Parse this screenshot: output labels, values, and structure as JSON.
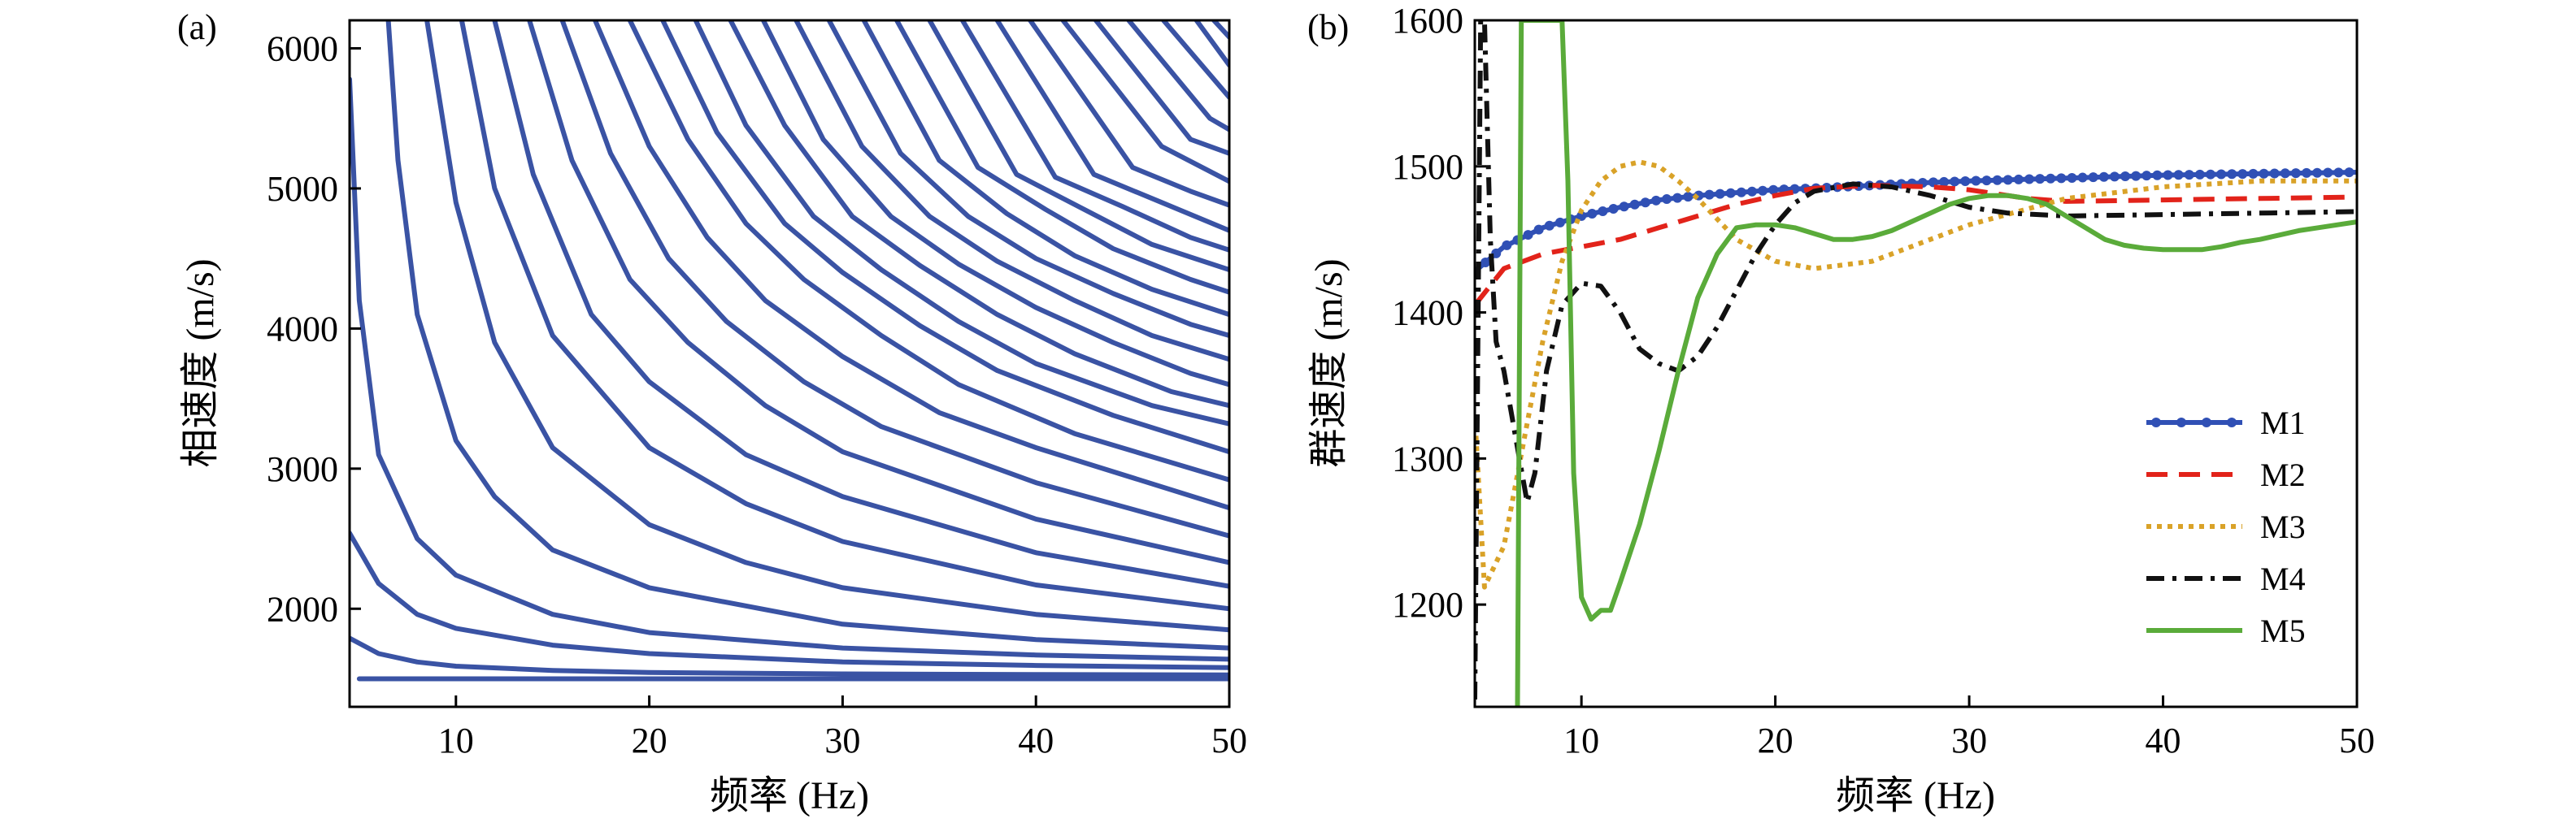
{
  "chart_data": [
    {
      "panel_label": "(a)",
      "type": "line",
      "xlabel": "频率 (Hz)",
      "ylabel": "相速度 (m/s)",
      "xlim": [
        4.5,
        50
      ],
      "ylim": [
        1300,
        6200
      ],
      "xticks": [
        10,
        20,
        30,
        40,
        50
      ],
      "yticks": [
        2000,
        3000,
        4000,
        5000,
        6000
      ],
      "line_color": "#3a53a4",
      "series_note_free": true,
      "series": [
        {
          "x": [
            4.5,
            6,
            8,
            10,
            15,
            20,
            30,
            40,
            50
          ],
          "y": [
            1790,
            1680,
            1620,
            1590,
            1560,
            1545,
            1535,
            1530,
            1528
          ]
        },
        {
          "x": [
            4.5,
            6,
            8,
            10,
            15,
            20,
            30,
            40,
            50
          ],
          "y": [
            2540,
            2180,
            1960,
            1860,
            1740,
            1680,
            1620,
            1595,
            1580
          ]
        },
        {
          "x": [
            4.5,
            5,
            6,
            8,
            10,
            15,
            20,
            30,
            40,
            50
          ],
          "y": [
            5780,
            4200,
            3100,
            2500,
            2240,
            1960,
            1830,
            1720,
            1670,
            1640
          ]
        },
        {
          "x": [
            6.5,
            7,
            8,
            10,
            12,
            15,
            20,
            30,
            40,
            50
          ],
          "y": [
            6200,
            5200,
            4100,
            3200,
            2800,
            2420,
            2150,
            1890,
            1780,
            1720
          ]
        },
        {
          "x": [
            8.5,
            10,
            12,
            15,
            20,
            25,
            30,
            40,
            50
          ],
          "y": [
            6200,
            4900,
            3900,
            3150,
            2600,
            2330,
            2150,
            1960,
            1850
          ]
        },
        {
          "x": [
            10.3,
            12,
            15,
            20,
            25,
            30,
            40,
            50
          ],
          "y": [
            6200,
            5000,
            3950,
            3150,
            2750,
            2480,
            2170,
            2000
          ]
        },
        {
          "x": [
            12,
            14,
            17,
            20,
            25,
            30,
            40,
            50
          ],
          "y": [
            6200,
            5100,
            4100,
            3620,
            3100,
            2800,
            2400,
            2160
          ]
        },
        {
          "x": [
            13.8,
            16,
            19,
            22,
            26,
            30,
            40,
            50
          ],
          "y": [
            6200,
            5200,
            4350,
            3900,
            3450,
            3120,
            2640,
            2330
          ]
        },
        {
          "x": [
            15.5,
            18,
            21,
            24,
            28,
            32,
            40,
            50
          ],
          "y": [
            6200,
            5250,
            4500,
            4050,
            3620,
            3300,
            2900,
            2520
          ]
        },
        {
          "x": [
            17.2,
            20,
            23,
            26,
            30,
            35,
            40,
            50
          ],
          "y": [
            6200,
            5300,
            4650,
            4200,
            3800,
            3400,
            3150,
            2720
          ]
        },
        {
          "x": [
            19,
            22,
            25,
            28,
            32,
            36,
            42,
            50
          ],
          "y": [
            6200,
            5350,
            4750,
            4350,
            3950,
            3600,
            3250,
            2920
          ]
        },
        {
          "x": [
            20.7,
            23.5,
            27,
            30,
            34,
            38,
            44,
            50
          ],
          "y": [
            6200,
            5400,
            4750,
            4400,
            4020,
            3700,
            3380,
            3120
          ]
        },
        {
          "x": [
            22.4,
            25,
            28.5,
            32,
            36,
            40,
            46,
            50
          ],
          "y": [
            6200,
            5450,
            4800,
            4420,
            4050,
            3750,
            3450,
            3320
          ]
        },
        {
          "x": [
            24.2,
            27,
            30.5,
            34,
            38,
            42,
            47,
            50
          ],
          "y": [
            6200,
            5450,
            4800,
            4450,
            4100,
            3820,
            3550,
            3450
          ]
        },
        {
          "x": [
            25.9,
            29,
            32.5,
            36,
            40,
            44,
            48,
            50
          ],
          "y": [
            6200,
            5350,
            4800,
            4460,
            4150,
            3900,
            3680,
            3600
          ]
        },
        {
          "x": [
            27.6,
            31,
            34.5,
            38,
            42,
            46,
            50
          ],
          "y": [
            6200,
            5300,
            4800,
            4480,
            4200,
            3950,
            3780
          ]
        },
        {
          "x": [
            29.3,
            33,
            36.5,
            40,
            44,
            48,
            50
          ],
          "y": [
            6200,
            5250,
            4800,
            4500,
            4250,
            4030,
            3950
          ]
        },
        {
          "x": [
            31.1,
            35,
            38.5,
            42,
            46,
            50
          ],
          "y": [
            6200,
            5200,
            4820,
            4520,
            4280,
            4100
          ]
        },
        {
          "x": [
            32.8,
            37,
            40.5,
            44,
            48,
            50
          ],
          "y": [
            6200,
            5150,
            4850,
            4570,
            4350,
            4260
          ]
        },
        {
          "x": [
            34.5,
            39,
            42.5,
            46,
            50
          ],
          "y": [
            6200,
            5100,
            4850,
            4600,
            4420
          ]
        },
        {
          "x": [
            36.2,
            41,
            44.5,
            48,
            50
          ],
          "y": [
            6200,
            5080,
            4870,
            4650,
            4560
          ]
        },
        {
          "x": [
            38,
            43,
            46.5,
            50
          ],
          "y": [
            6200,
            5100,
            4900,
            4700
          ]
        },
        {
          "x": [
            39.7,
            45,
            48,
            50
          ],
          "y": [
            6200,
            5150,
            4980,
            4880
          ]
        },
        {
          "x": [
            41.4,
            46.5,
            50
          ],
          "y": [
            6200,
            5300,
            5050
          ]
        },
        {
          "x": [
            43.1,
            48,
            50
          ],
          "y": [
            6200,
            5350,
            5250
          ]
        },
        {
          "x": [
            44.8,
            49,
            50
          ],
          "y": [
            6200,
            5500,
            5420
          ]
        },
        {
          "x": [
            46.6,
            50
          ],
          "y": [
            6200,
            5650
          ]
        },
        {
          "x": [
            48.3,
            50
          ],
          "y": [
            6200,
            5880
          ]
        },
        {
          "x": [
            49.2,
            50
          ],
          "y": [
            6200,
            6080
          ]
        },
        {
          "x": [
            5,
            10,
            20,
            30,
            40,
            50
          ],
          "y": [
            1500,
            1500,
            1500,
            1500,
            1500,
            1500
          ]
        }
      ]
    },
    {
      "panel_label": "(b)",
      "type": "line",
      "xlabel": "频率 (Hz)",
      "ylabel": "群速度 (m/s)",
      "xlim": [
        4.5,
        50
      ],
      "ylim": [
        1130,
        1600
      ],
      "xticks": [
        10,
        20,
        30,
        40,
        50
      ],
      "yticks": [
        1200,
        1300,
        1400,
        1500,
        1600
      ],
      "legend_position": "lower-right",
      "series": [
        {
          "name": "M1",
          "color": "#3050b5",
          "style": "solid-markers",
          "x": [
            4.5,
            6,
            8,
            10,
            12,
            14,
            16,
            18,
            20,
            22,
            25,
            28,
            30,
            35,
            40,
            45,
            50
          ],
          "y": [
            1428,
            1445,
            1458,
            1466,
            1472,
            1477,
            1480,
            1482,
            1484,
            1485,
            1487,
            1489,
            1490,
            1492,
            1494,
            1495,
            1496
          ]
        },
        {
          "name": "M2",
          "color": "#e2231a",
          "style": "dashed",
          "x": [
            4.5,
            6,
            8,
            10,
            12,
            14,
            16,
            18,
            20,
            22,
            25,
            28,
            30,
            33,
            35,
            40,
            45,
            50
          ],
          "y": [
            1405,
            1430,
            1440,
            1445,
            1450,
            1458,
            1466,
            1474,
            1480,
            1485,
            1487,
            1486,
            1484,
            1478,
            1476,
            1477,
            1478,
            1479
          ]
        },
        {
          "name": "M3",
          "color": "#d9a228",
          "style": "dotted",
          "x": [
            4.5,
            5,
            6,
            7,
            8,
            9,
            10,
            11,
            12,
            13,
            14,
            15,
            16,
            18,
            20,
            22,
            25,
            28,
            30,
            35,
            40,
            45,
            50
          ],
          "y": [
            1330,
            1212,
            1240,
            1310,
            1380,
            1435,
            1470,
            1490,
            1500,
            1503,
            1500,
            1490,
            1478,
            1450,
            1435,
            1430,
            1435,
            1450,
            1460,
            1478,
            1486,
            1490,
            1490
          ]
        },
        {
          "name": "M4",
          "color": "#111111",
          "style": "dashdot",
          "x": [
            4.5,
            4.8,
            5,
            5.3,
            5.6,
            6,
            6.4,
            6.8,
            7.2,
            7.6,
            8.2,
            9,
            10,
            11,
            12,
            13,
            14,
            15,
            16,
            17,
            18,
            19,
            20,
            21,
            22,
            24,
            26,
            28,
            30,
            32,
            35,
            40,
            45,
            50
          ],
          "y": [
            1135,
            1600,
            1600,
            1450,
            1380,
            1360,
            1330,
            1300,
            1270,
            1290,
            1360,
            1405,
            1420,
            1418,
            1400,
            1375,
            1365,
            1360,
            1370,
            1390,
            1415,
            1440,
            1460,
            1475,
            1483,
            1488,
            1486,
            1480,
            1472,
            1468,
            1466,
            1467,
            1468,
            1469
          ]
        },
        {
          "name": "M5",
          "color": "#5aab3a",
          "style": "solid",
          "x": [
            6.7,
            6.9,
            7.2,
            7.6,
            8.2,
            8.8,
            9,
            9.3,
            9.6,
            10,
            10.5,
            11,
            11.5,
            12,
            13,
            14,
            15,
            16,
            17,
            18,
            19,
            20,
            21,
            22,
            23,
            24,
            25,
            26,
            27,
            28,
            29,
            30,
            31,
            32,
            33,
            34,
            35,
            36,
            37,
            38,
            39,
            40,
            41,
            42,
            43,
            44,
            45,
            46,
            47,
            48,
            49,
            50
          ],
          "y": [
            1130,
            1600,
            1600,
            1600,
            1600,
            1600,
            1600,
            1490,
            1290,
            1205,
            1190,
            1196,
            1196,
            1215,
            1255,
            1305,
            1360,
            1410,
            1440,
            1458,
            1460,
            1460,
            1458,
            1454,
            1450,
            1450,
            1452,
            1456,
            1462,
            1468,
            1474,
            1478,
            1480,
            1480,
            1478,
            1474,
            1466,
            1458,
            1450,
            1446,
            1444,
            1443,
            1443,
            1443,
            1445,
            1448,
            1450,
            1453,
            1456,
            1458,
            1460,
            1462
          ]
        }
      ]
    }
  ]
}
